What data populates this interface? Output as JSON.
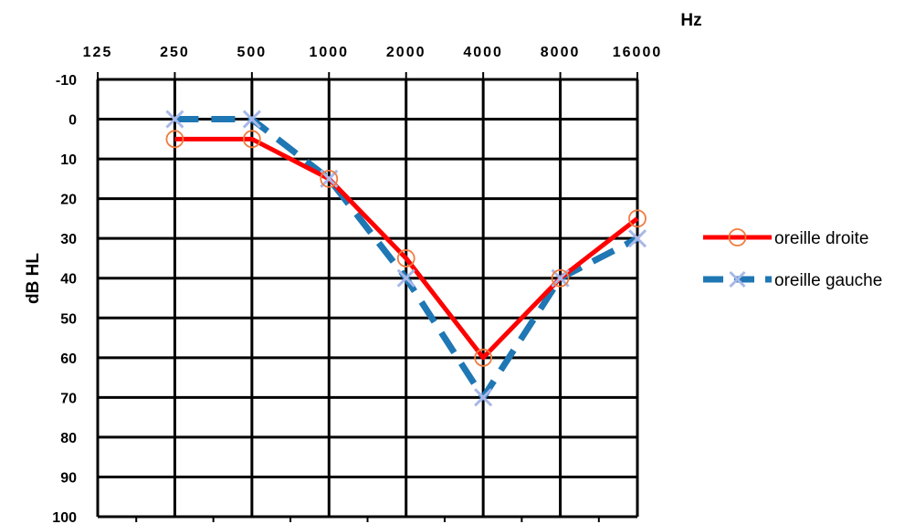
{
  "chart_data": {
    "type": "line",
    "title": "",
    "xlabel": "Hz",
    "ylabel": "dB HL",
    "x_categories": [
      "125",
      "250",
      "500",
      "1000",
      "2000",
      "4000",
      "8000",
      "16000"
    ],
    "y_ticks": [
      "-10",
      "0",
      "10",
      "20",
      "30",
      "40",
      "50",
      "60",
      "70",
      "80",
      "90",
      "100"
    ],
    "ylim": [
      -10,
      100
    ],
    "y_inverted": true,
    "grid": true,
    "legend_position": "right",
    "series": [
      {
        "name": "oreille droite",
        "color": "#ff0000",
        "marker_color": "#f07b3f",
        "marker": "circle",
        "line_style": "solid",
        "x": [
          "250",
          "500",
          "1000",
          "2000",
          "4000",
          "8000",
          "16000"
        ],
        "values": [
          5,
          5,
          15,
          35,
          60,
          40,
          25
        ]
      },
      {
        "name": "oreille gauche",
        "color": "#1f77b4",
        "marker_color": "#a9b8e8",
        "marker": "x",
        "line_style": "dashed",
        "x": [
          "250",
          "500",
          "1000",
          "2000",
          "4000",
          "8000",
          "16000"
        ],
        "values": [
          0,
          0,
          15,
          40,
          70,
          40,
          30
        ]
      }
    ]
  }
}
